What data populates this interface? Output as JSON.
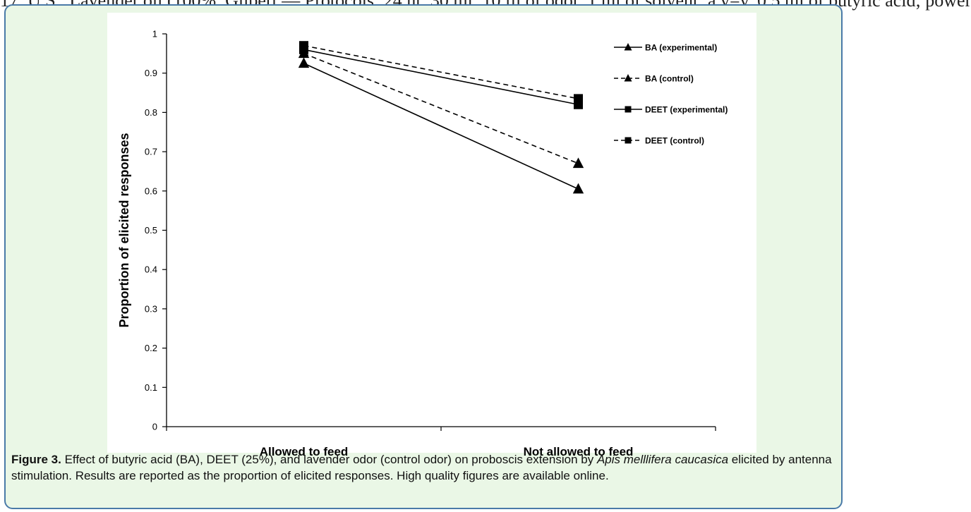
{
  "top_strip_text": "17, U.S., Lavender oil (100%, Gilbert — Protocols; 24 hr, 30 ml; 10 µl of odor, 1 ml of solvent; a v=v, 0.5 ml of butyric acid; power",
  "caption": {
    "label": "Figure 3.",
    "text_1": " Effect of butyric acid (BA), DEET (25%), and lavender odor (control odor) on proboscis extension by ",
    "species": "Apis melllifera caucasica",
    "text_2": " elicited by antenna stimulation. Results are reported as the proportion of elicited responses. High quality figures are available online."
  },
  "colors": {
    "figure_background": "#eaf7e6",
    "figure_border": "#4a7aa8",
    "series": "#000000"
  },
  "chart_data": {
    "type": "line",
    "title": "",
    "xlabel": "",
    "ylabel": "Proportion of elicited responses",
    "categories": [
      "Allowed to feed",
      "Not allowed to feed"
    ],
    "ylim": [
      0,
      1
    ],
    "yticks": [
      "0",
      "0.1",
      "0.2",
      "0.3",
      "0.4",
      "0.5",
      "0.6",
      "0.7",
      "0.8",
      "0.9",
      "1"
    ],
    "grid": false,
    "legend_position": "top-right",
    "series": [
      {
        "name": "BA (experimental)",
        "values": [
          0.925,
          0.605
        ],
        "line": "solid",
        "marker": "triangle"
      },
      {
        "name": "BA (control)",
        "values": [
          0.95,
          0.67
        ],
        "line": "dashed",
        "marker": "triangle"
      },
      {
        "name": "DEET (experimental)",
        "values": [
          0.96,
          0.82
        ],
        "line": "solid",
        "marker": "square"
      },
      {
        "name": "DEET (control)",
        "values": [
          0.97,
          0.835
        ],
        "line": "dashed",
        "marker": "square"
      }
    ]
  }
}
